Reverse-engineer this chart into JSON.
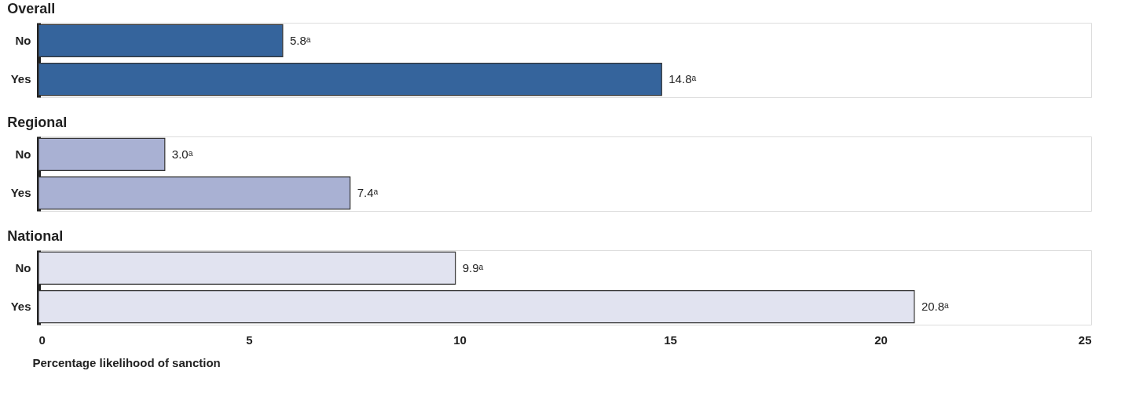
{
  "chart_data": [
    {
      "type": "bar",
      "orientation": "horizontal",
      "title": "Overall",
      "categories": [
        "No",
        "Yes"
      ],
      "values": [
        5.8,
        14.8
      ],
      "color": "#35649c",
      "value_labels": [
        "5.8ᵃ",
        "14.8ᵃ"
      ],
      "xlim": [
        0,
        25
      ],
      "xticks": [
        0,
        5,
        10,
        15,
        20,
        25
      ],
      "tick_labels": "y",
      "grid": false
    },
    {
      "type": "bar",
      "orientation": "horizontal",
      "title": "Regional",
      "categories": [
        "No",
        "Yes"
      ],
      "values": [
        3.0,
        7.4
      ],
      "color": "#a9b1d3",
      "value_labels": [
        "3.0ᵃ",
        "7.4ᵃ"
      ],
      "xlim": [
        0,
        25
      ],
      "xticks": [
        0,
        5,
        10,
        15,
        20,
        25
      ],
      "tick_labels": "y",
      "grid": false
    },
    {
      "type": "bar",
      "orientation": "horizontal",
      "title": "National",
      "categories": [
        "No",
        "Yes"
      ],
      "values": [
        9.9,
        20.8
      ],
      "color": "#e1e3f0",
      "value_labels": [
        "9.9ᵃ",
        "20.8ᵃ"
      ],
      "xlim": [
        0,
        25
      ],
      "xticks": [
        0,
        5,
        10,
        15,
        20,
        25
      ],
      "xlabel": "Percentage likelihood of sanction",
      "grid": false
    }
  ]
}
